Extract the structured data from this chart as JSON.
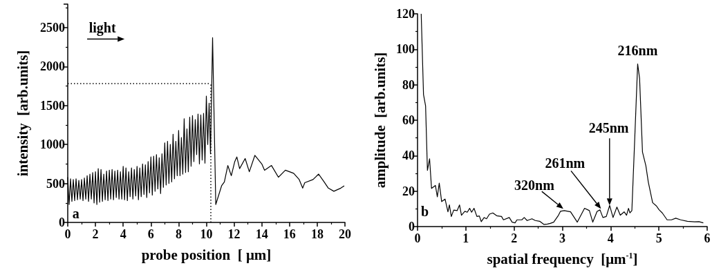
{
  "chart_data": [
    {
      "type": "line",
      "xlabel": "probe position  [ μm]",
      "ylabel": "intensity  [arb.units]",
      "xlim": [
        0,
        20
      ],
      "xticks": [
        0,
        2,
        4,
        6,
        8,
        10,
        12,
        14,
        16,
        18,
        20
      ],
      "ylim": [
        0,
        2800
      ],
      "yticks": [
        0,
        500,
        1000,
        1500,
        2000,
        2500
      ],
      "grid": false,
      "series": [
        {
          "color": "#000000",
          "x": [
            0.0,
            0.1,
            0.2,
            0.3,
            0.4,
            0.5,
            0.6,
            0.7,
            0.8,
            0.9,
            1.0,
            1.1,
            1.2,
            1.3,
            1.4,
            1.5,
            1.6,
            1.7,
            1.8,
            1.9,
            2.0,
            2.1,
            2.2,
            2.3,
            2.4,
            2.5,
            2.6,
            2.7,
            2.8,
            2.9,
            3.0,
            3.1,
            3.2,
            3.3,
            3.4,
            3.5,
            3.6,
            3.7,
            3.8,
            3.9,
            4.0,
            4.1,
            4.2,
            4.3,
            4.4,
            4.5,
            4.6,
            4.7,
            4.8,
            4.9,
            5.0,
            5.1,
            5.2,
            5.3,
            5.4,
            5.5,
            5.6,
            5.7,
            5.8,
            5.9,
            6.0,
            6.1,
            6.2,
            6.3,
            6.4,
            6.5,
            6.6,
            6.7,
            6.8,
            6.9,
            7.0,
            7.1,
            7.2,
            7.3,
            7.4,
            7.5,
            7.6,
            7.7,
            7.8,
            7.9,
            8.0,
            8.1,
            8.2,
            8.3,
            8.4,
            8.5,
            8.6,
            8.7,
            8.8,
            8.9,
            9.0,
            9.1,
            9.2,
            9.3,
            9.4,
            9.5,
            9.6,
            9.7,
            9.8,
            9.9,
            10.0,
            10.1,
            10.2,
            10.3,
            10.45,
            10.68,
            11.1,
            11.3,
            11.55,
            11.8,
            12.05,
            12.2,
            12.4,
            12.8,
            13.1,
            13.5,
            14.0,
            14.2,
            14.7,
            15.2,
            15.7,
            16.3,
            16.7,
            16.95,
            17.1,
            17.7,
            18.1,
            18.5,
            18.8,
            19.2,
            19.7,
            19.95
          ],
          "values": [
            580,
            230,
            560,
            270,
            550,
            280,
            560,
            290,
            540,
            300,
            550,
            280,
            570,
            300,
            600,
            270,
            620,
            300,
            640,
            250,
            650,
            230,
            690,
            260,
            680,
            270,
            620,
            290,
            660,
            280,
            670,
            300,
            680,
            290,
            660,
            320,
            670,
            300,
            650,
            300,
            720,
            290,
            700,
            280,
            650,
            330,
            700,
            300,
            680,
            340,
            720,
            290,
            700,
            330,
            750,
            360,
            740,
            320,
            780,
            380,
            840,
            350,
            850,
            400,
            870,
            430,
            830,
            370,
            880,
            450,
            1020,
            480,
            1040,
            500,
            1000,
            520,
            1130,
            560,
            1040,
            600,
            1180,
            600,
            1090,
            620,
            1330,
            640,
            1200,
            650,
            1350,
            720,
            1370,
            780,
            1320,
            870,
            1390,
            750,
            1380,
            800,
            1400,
            760,
            1620,
            1000,
            1530,
            880,
            2370,
            230,
            470,
            520,
            730,
            600,
            780,
            840,
            690,
            820,
            650,
            860,
            750,
            670,
            730,
            580,
            670,
            630,
            550,
            440,
            510,
            550,
            620,
            520,
            440,
            400,
            440,
            470
          ]
        }
      ],
      "ref_lines": [
        {
          "axis": "y",
          "value": 1780,
          "line_style": "dotted",
          "color": "#000000"
        },
        {
          "axis": "x",
          "value": 10.3,
          "line_style": "dotted",
          "color": "#000000"
        }
      ],
      "annotations": [
        "light",
        "a"
      ]
    },
    {
      "type": "line",
      "xlabel": "spatial frequency  [μm$^{-1}$]",
      "ylabel": "amplitude  [arb.units]",
      "xlim": [
        0,
        6
      ],
      "xticks": [
        0,
        1,
        2,
        3,
        4,
        5,
        6
      ],
      "ylim": [
        0,
        120
      ],
      "yticks": [
        0,
        20,
        40,
        60,
        80,
        100,
        120
      ],
      "grid": false,
      "series": [
        {
          "color": "#000000",
          "x": [
            0.076,
            0.124,
            0.167,
            0.205,
            0.25,
            0.29,
            0.37,
            0.41,
            0.45,
            0.5,
            0.57,
            0.63,
            0.66,
            0.7,
            0.75,
            0.82,
            0.87,
            0.91,
            0.98,
            1.03,
            1.08,
            1.12,
            1.17,
            1.23,
            1.28,
            1.32,
            1.38,
            1.43,
            1.49,
            1.56,
            1.64,
            1.74,
            1.78,
            1.9,
            1.96,
            2.02,
            2.06,
            2.16,
            2.21,
            2.27,
            2.37,
            2.44,
            2.53,
            2.62,
            2.69,
            2.75,
            2.82,
            2.92,
            2.96,
            3.04,
            3.17,
            3.31,
            3.46,
            3.56,
            3.63,
            3.72,
            3.78,
            3.84,
            3.91,
            3.98,
            4.05,
            4.13,
            4.2,
            4.28,
            4.33,
            4.37,
            4.4,
            4.44,
            4.5,
            4.56,
            4.6,
            4.66,
            4.73,
            4.78,
            4.87,
            4.95,
            5.0,
            5.07,
            5.17,
            5.26,
            5.35,
            5.45,
            5.59,
            5.74,
            5.83,
            5.92
          ],
          "values": [
            120,
            74.5,
            68,
            31.7,
            38.2,
            21.5,
            23.2,
            16.8,
            24.5,
            14.1,
            15.5,
            8.3,
            12.2,
            5.7,
            9.3,
            9.0,
            12.2,
            6.4,
            8.6,
            8.1,
            10.3,
            8.1,
            10.3,
            5.7,
            6.0,
            2.8,
            5.1,
            4.4,
            7.0,
            7.7,
            6.1,
            5.7,
            3.8,
            5.1,
            2.5,
            2.1,
            3.8,
            3.8,
            5.1,
            3.4,
            4.4,
            3.4,
            3.0,
            1.2,
            1.4,
            1.8,
            2.5,
            6.4,
            8.6,
            9.0,
            8.3,
            2.5,
            10.3,
            9.0,
            2.5,
            8.6,
            9.4,
            5.1,
            5.7,
            11.9,
            5.1,
            11.0,
            6.4,
            8.3,
            6.4,
            10.3,
            7.7,
            9.0,
            49.9,
            91.7,
            83.6,
            42,
            34.3,
            25.2,
            13.5,
            11.6,
            9.6,
            7.7,
            3.8,
            3.8,
            4.7,
            3.8,
            3.0,
            2.7,
            2.8,
            2.1
          ]
        }
      ],
      "annotations": [
        {
          "text": "216nm",
          "x": 4.56,
          "y": 91.7
        },
        "245nm",
        {
          "text": "261nm",
          "x": 3.8,
          "y": 10
        },
        {
          "text": "320nm",
          "x": 3.02,
          "y": 10
        },
        "b"
      ]
    }
  ]
}
